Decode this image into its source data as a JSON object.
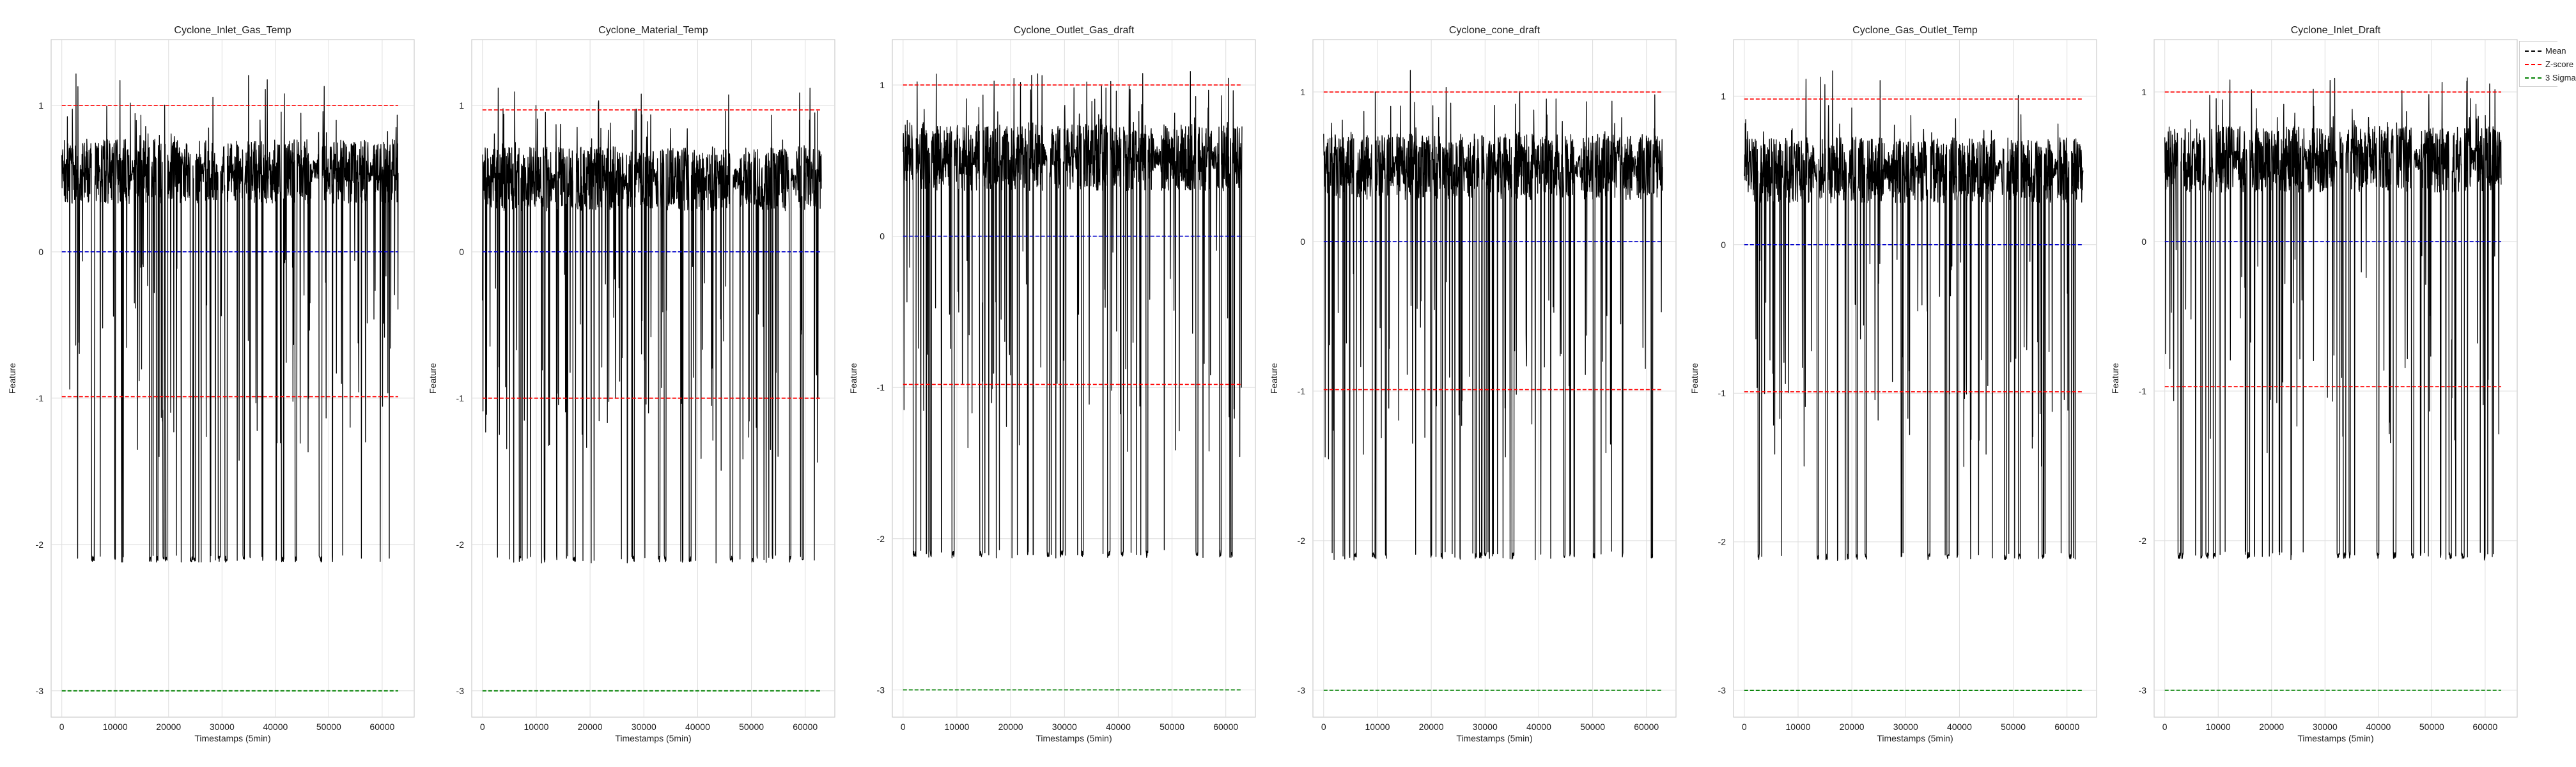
{
  "chart_data": [
    {
      "type": "line",
      "title": "Cyclone_Inlet_Gas_Temp",
      "xlabel": "Timestamps (5min)",
      "ylabel": "Feature",
      "x_ticks": [
        0,
        10000,
        20000,
        30000,
        40000,
        50000,
        60000
      ],
      "xlim": [
        -2000,
        66000
      ],
      "y_ticks": [
        -3,
        -2,
        -1,
        0,
        1
      ],
      "ylim": [
        -3.18,
        1.45
      ],
      "mean": 0.0,
      "plus_sigma": 1.0,
      "minus_sigma": -0.99,
      "three_sigma": -3.0,
      "signal": {
        "base": 0.55,
        "band": 0.22,
        "min": -2.12,
        "max": 1.22,
        "dropouts_to": -2.1,
        "n_points": 63000
      }
    },
    {
      "type": "line",
      "title": "Cyclone_Material_Temp",
      "xlabel": "Timestamps (5min)",
      "ylabel": "Feature",
      "x_ticks": [
        0,
        10000,
        20000,
        30000,
        40000,
        50000,
        60000
      ],
      "xlim": [
        -2000,
        65500
      ],
      "y_ticks": [
        -3,
        -2,
        -1,
        0,
        1
      ],
      "ylim": [
        -3.18,
        1.45
      ],
      "mean": 0.0,
      "plus_sigma": 0.97,
      "minus_sigma": -1.0,
      "three_sigma": -3.0,
      "signal": {
        "base": 0.5,
        "band": 0.22,
        "min": -2.14,
        "max": 1.25,
        "dropouts_to": -2.1,
        "n_points": 63000
      }
    },
    {
      "type": "line",
      "title": "Cyclone_Outlet_Gas_draft",
      "xlabel": "Timestamps (5min)",
      "ylabel": "Feature",
      "x_ticks": [
        0,
        10000,
        20000,
        30000,
        40000,
        50000,
        60000
      ],
      "xlim": [
        -2000,
        65500
      ],
      "y_ticks": [
        -3,
        -2,
        -1,
        0,
        1
      ],
      "ylim": [
        -3.18,
        1.3
      ],
      "mean": 0.0,
      "plus_sigma": 1.0,
      "minus_sigma": -0.98,
      "three_sigma": -3.0,
      "signal": {
        "base": 0.52,
        "band": 0.22,
        "min": -2.18,
        "max": 1.1,
        "dropouts_to": -2.1,
        "n_points": 63000
      }
    },
    {
      "type": "line",
      "title": "Cyclone_cone_draft",
      "xlabel": "Timestamps (5min)",
      "ylabel": "Feature",
      "x_ticks": [
        0,
        10000,
        20000,
        30000,
        40000,
        50000,
        60000
      ],
      "xlim": [
        -2000,
        65500
      ],
      "y_ticks": [
        -3,
        -2,
        -1,
        0,
        1
      ],
      "ylim": [
        -3.18,
        1.35
      ],
      "mean": 0.0,
      "plus_sigma": 1.0,
      "minus_sigma": -0.99,
      "three_sigma": -3.0,
      "signal": {
        "base": 0.5,
        "band": 0.22,
        "min": -2.2,
        "max": 1.15,
        "dropouts_to": -2.1,
        "n_points": 63000
      }
    },
    {
      "type": "line",
      "title": "Cyclone_Gas_Outlet_Temp",
      "xlabel": "Timestamps (5min)",
      "ylabel": "Feature",
      "x_ticks": [
        0,
        10000,
        20000,
        30000,
        40000,
        50000,
        60000
      ],
      "xlim": [
        -2000,
        65500
      ],
      "y_ticks": [
        -3,
        -2,
        -1,
        0,
        1
      ],
      "ylim": [
        -3.18,
        1.38
      ],
      "mean": 0.0,
      "plus_sigma": 0.98,
      "minus_sigma": -0.99,
      "three_sigma": -3.0,
      "signal": {
        "base": 0.5,
        "band": 0.22,
        "min": -2.14,
        "max": 1.2,
        "dropouts_to": -2.1,
        "n_points": 63000
      }
    },
    {
      "type": "line",
      "title": "Cyclone_Inlet_Draft",
      "xlabel": "Timestamps (5min)",
      "ylabel": "Feature",
      "x_ticks": [
        0,
        10000,
        20000,
        30000,
        40000,
        50000,
        60000
      ],
      "xlim": [
        -2000,
        66000
      ],
      "y_ticks": [
        -3,
        -2,
        -1,
        0,
        1
      ],
      "ylim": [
        -3.18,
        1.35
      ],
      "mean": 0.0,
      "plus_sigma": 1.0,
      "minus_sigma": -0.97,
      "three_sigma": -3.0,
      "signal": {
        "base": 0.55,
        "band": 0.22,
        "min": -2.2,
        "max": 1.1,
        "dropouts_to": -2.1,
        "n_points": 63000
      }
    }
  ],
  "legend": {
    "placement": "top-right",
    "items": [
      {
        "label": "Mean",
        "color": "#000000"
      },
      {
        "label": "Z-score",
        "color": "#ff0000"
      },
      {
        "label": "3 Sigma",
        "color": "#008000"
      }
    ]
  },
  "colors": {
    "signal": "#000000",
    "mean": "#0000cc",
    "sigma": "#ff0000",
    "three_sigma": "#008000",
    "grid": "#dddddd",
    "frame": "#cccccc"
  }
}
